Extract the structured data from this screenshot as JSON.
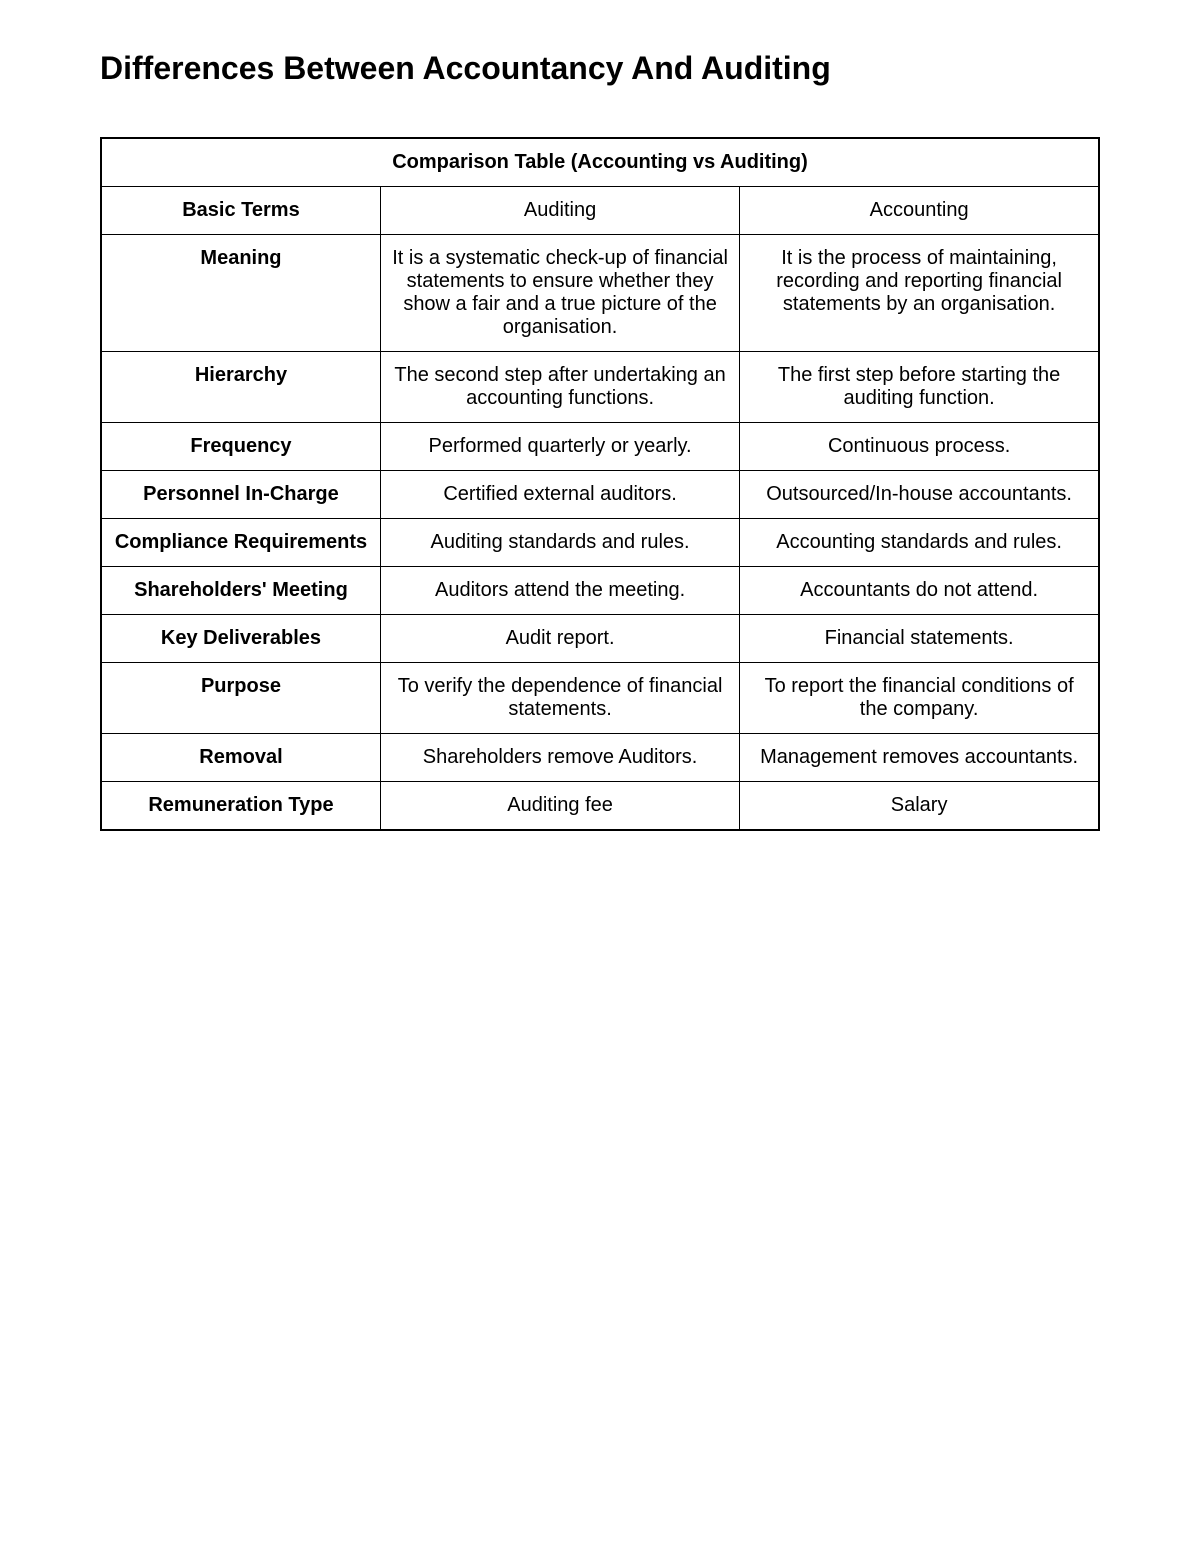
{
  "page": {
    "title": "Differences Between Accountancy And Auditing"
  },
  "table": {
    "caption": "Comparison Table (Accounting vs Auditing)",
    "columns": [
      "Basic Terms",
      "Auditing",
      "Accounting"
    ],
    "rows": [
      {
        "term": "Meaning",
        "auditing": "It is a systematic check-up of financial statements to ensure whether they show a fair and a true picture of the organisation.",
        "accounting": "It is the process of maintaining, recording and reporting financial statements by an organisation."
      },
      {
        "term": "Hierarchy",
        "auditing": "The second step after undertaking an accounting functions.",
        "accounting": "The first step before starting the auditing function."
      },
      {
        "term": "Frequency",
        "auditing": "Performed quarterly or yearly.",
        "accounting": "Continuous process."
      },
      {
        "term": "Personnel In-Charge",
        "auditing": "Certified external auditors.",
        "accounting": "Outsourced/In-house accountants."
      },
      {
        "term": "Compliance Requirements",
        "auditing": "Auditing standards and rules.",
        "accounting": "Accounting standards and rules."
      },
      {
        "term": "Shareholders' Meeting",
        "auditing": "Auditors attend the meeting.",
        "accounting": "Accountants do not attend."
      },
      {
        "term": "Key Deliverables",
        "auditing": "Audit report.",
        "accounting": "Financial statements."
      },
      {
        "term": "Purpose",
        "auditing": "To verify the dependence of financial statements.",
        "accounting": "To report the financial conditions of the company."
      },
      {
        "term": "Removal",
        "auditing": "Shareholders remove Auditors.",
        "accounting": "Management removes accountants."
      },
      {
        "term": "Remuneration Type",
        "auditing": "Auditing fee",
        "accounting": "Salary"
      }
    ]
  },
  "style": {
    "background_color": "#ffffff",
    "text_color": "#000000",
    "border_color": "#000000",
    "title_fontsize": 32,
    "caption_fontsize": 21,
    "header_fontsize": 21,
    "cell_fontsize": 20,
    "font_family": "Arial"
  }
}
